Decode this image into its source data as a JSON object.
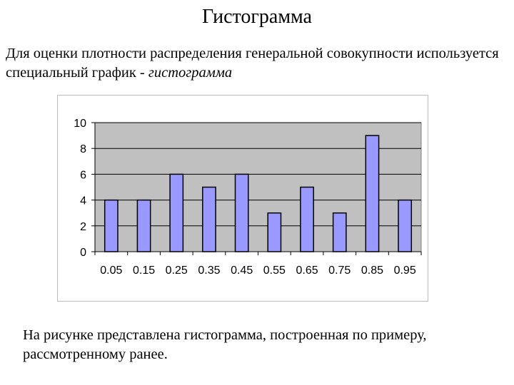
{
  "title": "Гистограмма",
  "intro": {
    "text": "Для оценки плотности распределения генеральной совокупности используется специальный график - ",
    "emphasis": "гистограмма"
  },
  "caption": "На рисунке представлена гистограмма, построенная по примеру, рассмотренному ранее.",
  "chart_data": {
    "type": "bar",
    "categories": [
      "0.05",
      "0.15",
      "0.25",
      "0.35",
      "0.45",
      "0.55",
      "0.65",
      "0.75",
      "0.85",
      "0.95"
    ],
    "values": [
      4,
      4,
      6,
      5,
      6,
      3,
      5,
      3,
      9,
      4
    ],
    "yticks": [
      "0",
      "2",
      "4",
      "6",
      "8",
      "10"
    ],
    "ylim": [
      0,
      10
    ],
    "grid": true,
    "legend": "none",
    "title": "",
    "xlabel": "",
    "ylabel": "",
    "colors": {
      "bar_fill": "#9999ff",
      "bar_stroke": "#000000",
      "plot_bg": "#c0c0c0",
      "gridline": "#000000"
    }
  }
}
